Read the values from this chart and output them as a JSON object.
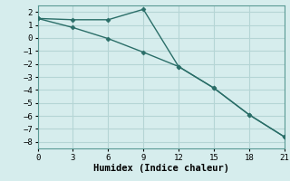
{
  "line1_x": [
    0,
    3,
    6,
    9,
    12,
    15,
    18,
    21
  ],
  "line1_y": [
    1.5,
    1.4,
    1.4,
    2.2,
    -2.2,
    -3.85,
    -5.9,
    -7.6
  ],
  "line2_x": [
    0,
    3,
    6,
    9,
    12,
    15,
    18,
    21
  ],
  "line2_y": [
    1.5,
    0.8,
    -0.05,
    -1.1,
    -2.2,
    -3.85,
    -5.9,
    -7.6
  ],
  "line_color": "#2a6e68",
  "bg_color": "#d6eded",
  "grid_color": "#b5d5d5",
  "xlabel": "Humidex (Indice chaleur)",
  "xlim": [
    0,
    21
  ],
  "ylim": [
    -8.5,
    2.5
  ],
  "xticks": [
    0,
    3,
    6,
    9,
    12,
    15,
    18,
    21
  ],
  "yticks": [
    2,
    1,
    0,
    -1,
    -2,
    -3,
    -4,
    -5,
    -6,
    -7,
    -8
  ],
  "xlabel_fontsize": 7.5,
  "tick_fontsize": 6.5
}
